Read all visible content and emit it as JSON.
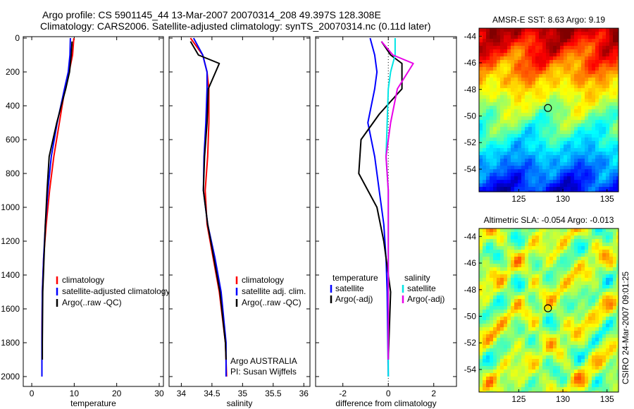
{
  "header": {
    "line1": "Argo profile: CS 5901145_44 13-Mar-2007 20070314_208 49.397S 128.308E",
    "line2": "Climatology: CARS2006. Satellite-adjusted climatology: synTS_20070314.nc (0.11d later)"
  },
  "side_label": "CSIRO 24-Mar-2007 09:01:25",
  "colors": {
    "red": "#ff0000",
    "blue": "#0000ff",
    "black": "#000000",
    "cyan": "#00e5e5",
    "magenta": "#e800e8"
  },
  "chart_data": [
    {
      "type": "line",
      "id": "temp",
      "xlabel": "temperature",
      "xlim": [
        -2,
        31
      ],
      "xticks": [
        0,
        10,
        20,
        30
      ],
      "ylim": [
        0,
        2050
      ],
      "yticks": [
        0,
        200,
        400,
        600,
        800,
        1000,
        1200,
        1400,
        1600,
        1800,
        2000
      ],
      "reversed_y": true,
      "legend": [
        "climatology",
        "satellite-adjusted climatology",
        "Argo(..raw -QC)"
      ],
      "legend_colors": [
        "red",
        "blue",
        "black"
      ],
      "series": [
        {
          "name": "climatology",
          "color": "red",
          "x": [
            9.9,
            9.6,
            8.8,
            7.8,
            6.5,
            5.2,
            4.2,
            3.4,
            2.8,
            2.5,
            2.4,
            2.4
          ],
          "depth": [
            0,
            100,
            200,
            300,
            500,
            700,
            900,
            1100,
            1300,
            1500,
            1800,
            2000
          ]
        },
        {
          "name": "satellite-adjusted climatology",
          "color": "blue",
          "x": [
            9.1,
            9.0,
            8.6,
            7.7,
            6.0,
            4.6,
            3.8,
            3.2,
            2.8,
            2.5,
            2.4,
            2.4
          ],
          "depth": [
            0,
            100,
            200,
            300,
            500,
            700,
            900,
            1100,
            1300,
            1500,
            1800,
            2000
          ]
        },
        {
          "name": "Argo(..raw -QC)",
          "color": "black",
          "x": [
            9.5,
            9.3,
            8.9,
            8.0,
            5.9,
            4.1,
            3.6,
            3.2,
            2.9,
            2.6,
            2.5,
            2.5
          ],
          "depth": [
            20,
            100,
            200,
            300,
            500,
            700,
            900,
            1100,
            1300,
            1500,
            1800,
            1900
          ]
        }
      ]
    },
    {
      "type": "line",
      "id": "salt",
      "xlabel": "salinity",
      "xlim": [
        33.8,
        36.1
      ],
      "xticks": [
        34,
        34.5,
        35,
        35.5,
        36
      ],
      "ylim": [
        0,
        2050
      ],
      "reversed_y": true,
      "legend": [
        "climatology",
        "satellite adj. clim.",
        "Argo(..raw -QC)"
      ],
      "legend_colors": [
        "red",
        "blue",
        "black"
      ],
      "annotation": [
        "Argo AUSTRALIA",
        "PI: Susan Wijffels"
      ],
      "series": [
        {
          "name": "climatology",
          "color": "red",
          "x": [
            34.15,
            34.35,
            34.42,
            34.45,
            34.45,
            34.43,
            34.39,
            34.42,
            34.52,
            34.62,
            34.72,
            34.74
          ],
          "depth": [
            0,
            100,
            200,
            300,
            500,
            700,
            900,
            1100,
            1300,
            1500,
            1800,
            2000
          ]
        },
        {
          "name": "satellite adj. clim.",
          "color": "blue",
          "x": [
            34.2,
            34.35,
            34.42,
            34.42,
            34.4,
            34.37,
            34.36,
            34.43,
            34.55,
            34.65,
            34.73,
            34.73
          ],
          "depth": [
            0,
            100,
            200,
            300,
            500,
            700,
            900,
            1100,
            1300,
            1500,
            1800,
            2000
          ]
        },
        {
          "name": "Argo(..raw -QC)",
          "color": "black",
          "x": [
            34.15,
            34.28,
            34.62,
            34.44,
            34.42,
            34.38,
            34.36,
            34.43,
            34.53,
            34.63,
            34.72,
            34.73
          ],
          "depth": [
            20,
            100,
            150,
            300,
            500,
            700,
            900,
            1100,
            1300,
            1500,
            1800,
            1900
          ]
        }
      ]
    },
    {
      "type": "line",
      "id": "diff",
      "xlabel": "difference from climatology",
      "xlim": [
        -3.2,
        3.0
      ],
      "xticks": [
        -2,
        0,
        2
      ],
      "ylim": [
        0,
        2050
      ],
      "reversed_y": true,
      "legend": [
        "temperature",
        "satellite",
        "Argo(-adj)",
        "salinity",
        "satellite",
        "Argo(-adj)"
      ],
      "legend_colors": [
        "none",
        "blue",
        "black",
        "none",
        "cyan",
        "magenta"
      ],
      "series": [
        {
          "name": "temperature satellite",
          "color": "blue",
          "x": [
            -0.8,
            -0.6,
            -0.5,
            -0.6,
            -0.9,
            -0.6,
            -0.4,
            -0.2,
            -0.1,
            -0.05,
            0
          ],
          "depth": [
            0,
            100,
            200,
            300,
            500,
            700,
            900,
            1100,
            1300,
            1500,
            2000
          ]
        },
        {
          "name": "temperature Argo(-adj)",
          "color": "black",
          "x": [
            -0.3,
            0.1,
            0.6,
            0.6,
            -0.4,
            -1.2,
            -1.3,
            -0.5,
            -0.2,
            0.1,
            0
          ],
          "depth": [
            20,
            100,
            150,
            300,
            450,
            600,
            800,
            1000,
            1200,
            1500,
            1900
          ]
        },
        {
          "name": "salinity satellite",
          "color": "cyan",
          "x": [
            0.3,
            0.3,
            0.1,
            0.0,
            -0.05,
            -0.1,
            0,
            0,
            0,
            0
          ],
          "depth": [
            0,
            100,
            200,
            300,
            500,
            700,
            900,
            1100,
            1500,
            2000
          ]
        },
        {
          "name": "salinity Argo(-adj)",
          "color": "magenta",
          "x": [
            -0.3,
            0.2,
            1.1,
            0.4,
            0.1,
            -0.1,
            0,
            0,
            0,
            0
          ],
          "depth": [
            20,
            100,
            150,
            300,
            500,
            700,
            900,
            1100,
            1500,
            1900
          ]
        }
      ]
    },
    {
      "type": "heatmap",
      "id": "sst",
      "title": "AMSR-E SST: 8.63 Argo: 9.19",
      "xticks": [
        125,
        130,
        135
      ],
      "yticks": [
        -44,
        -46,
        -48,
        -50,
        -52,
        -54
      ],
      "lon_range": [
        120.5,
        136.3
      ],
      "lat_range": [
        -55.7,
        -43.4
      ],
      "argo_position": {
        "lon": 128.308,
        "lat": -49.397
      }
    },
    {
      "type": "heatmap",
      "id": "sla",
      "title": "Altimetric SLA: -0.054 Argo: -0.013",
      "xticks": [
        125,
        130,
        135
      ],
      "yticks": [
        -44,
        -46,
        -48,
        -50,
        -52,
        -54
      ],
      "lon_range": [
        120.5,
        136.3
      ],
      "lat_range": [
        -55.7,
        -43.4
      ],
      "argo_position": {
        "lon": 128.308,
        "lat": -49.397
      }
    }
  ]
}
